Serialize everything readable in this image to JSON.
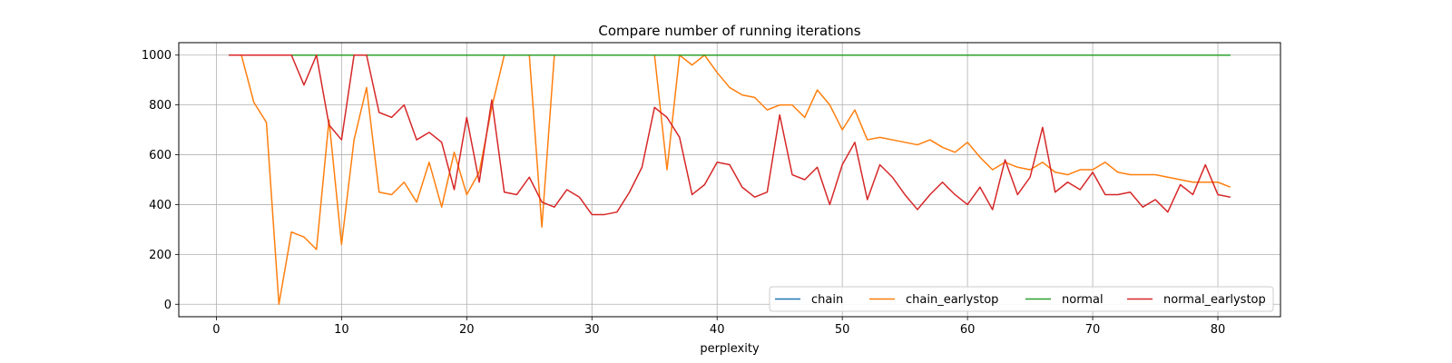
{
  "chart_data": {
    "type": "line",
    "title": "Compare number of running iterations",
    "xlabel": "perplexity",
    "ylabel": "",
    "xlim": [
      -3,
      85
    ],
    "ylim": [
      -50,
      1050
    ],
    "xticks": [
      0,
      10,
      20,
      30,
      40,
      50,
      60,
      70,
      80
    ],
    "yticks": [
      0,
      200,
      400,
      600,
      800,
      1000
    ],
    "grid": true,
    "legend_position": "lower-right",
    "legend_columns": 4,
    "x": [
      1,
      2,
      3,
      4,
      5,
      6,
      7,
      8,
      9,
      10,
      11,
      12,
      13,
      14,
      15,
      16,
      17,
      18,
      19,
      20,
      21,
      22,
      23,
      24,
      25,
      26,
      27,
      28,
      29,
      30,
      31,
      32,
      33,
      34,
      35,
      36,
      37,
      38,
      39,
      40,
      41,
      42,
      43,
      44,
      45,
      46,
      47,
      48,
      49,
      50,
      51,
      52,
      53,
      54,
      55,
      56,
      57,
      58,
      59,
      60,
      61,
      62,
      63,
      64,
      65,
      66,
      67,
      68,
      69,
      70,
      71,
      72,
      73,
      74,
      75,
      76,
      77,
      78,
      79,
      80,
      81
    ],
    "series": [
      {
        "name": "chain",
        "color": "#1f77b4",
        "values": [
          1000,
          1000,
          1000,
          1000,
          1000,
          1000,
          1000,
          1000,
          1000,
          1000,
          1000,
          1000,
          1000,
          1000,
          1000,
          1000,
          1000,
          1000,
          1000,
          1000,
          1000,
          1000,
          1000,
          1000,
          1000,
          1000,
          1000,
          1000,
          1000,
          1000,
          1000,
          1000,
          1000,
          1000,
          1000,
          1000,
          1000,
          1000,
          1000,
          1000,
          1000,
          1000,
          1000,
          1000,
          1000,
          1000,
          1000,
          1000,
          1000,
          1000,
          1000,
          1000,
          1000,
          1000,
          1000,
          1000,
          1000,
          1000,
          1000,
          1000,
          1000,
          1000,
          1000,
          1000,
          1000,
          1000,
          1000,
          1000,
          1000,
          1000,
          1000,
          1000,
          1000,
          1000,
          1000,
          1000,
          1000,
          1000,
          1000,
          1000,
          1000
        ]
      },
      {
        "name": "chain_earlystop",
        "color": "#ff7f0e",
        "values": [
          1000,
          1000,
          810,
          730,
          0,
          290,
          270,
          220,
          740,
          240,
          660,
          870,
          450,
          440,
          490,
          410,
          570,
          390,
          610,
          440,
          530,
          790,
          1000,
          1000,
          1000,
          310,
          1000,
          1000,
          1000,
          1000,
          1000,
          1000,
          1000,
          1000,
          1000,
          540,
          1000,
          960,
          1000,
          930,
          870,
          840,
          830,
          780,
          800,
          800,
          750,
          860,
          800,
          700,
          780,
          660,
          670,
          660,
          650,
          640,
          660,
          630,
          610,
          650,
          590,
          540,
          570,
          550,
          540,
          570,
          530,
          520,
          540,
          540,
          570,
          530,
          520,
          520,
          520,
          510,
          500,
          490,
          490,
          490,
          470
        ]
      },
      {
        "name": "normal",
        "color": "#2ca02c",
        "values": [
          1000,
          1000,
          1000,
          1000,
          1000,
          1000,
          1000,
          1000,
          1000,
          1000,
          1000,
          1000,
          1000,
          1000,
          1000,
          1000,
          1000,
          1000,
          1000,
          1000,
          1000,
          1000,
          1000,
          1000,
          1000,
          1000,
          1000,
          1000,
          1000,
          1000,
          1000,
          1000,
          1000,
          1000,
          1000,
          1000,
          1000,
          1000,
          1000,
          1000,
          1000,
          1000,
          1000,
          1000,
          1000,
          1000,
          1000,
          1000,
          1000,
          1000,
          1000,
          1000,
          1000,
          1000,
          1000,
          1000,
          1000,
          1000,
          1000,
          1000,
          1000,
          1000,
          1000,
          1000,
          1000,
          1000,
          1000,
          1000,
          1000,
          1000,
          1000,
          1000,
          1000,
          1000,
          1000,
          1000,
          1000,
          1000,
          1000,
          1000,
          1000
        ]
      },
      {
        "name": "normal_earlystop",
        "color": "#d62728",
        "values": [
          1000,
          1000,
          1000,
          1000,
          1000,
          1000,
          880,
          1000,
          720,
          660,
          1000,
          1000,
          770,
          750,
          800,
          660,
          690,
          650,
          460,
          750,
          490,
          820,
          450,
          440,
          510,
          410,
          390,
          460,
          430,
          360,
          360,
          370,
          450,
          550,
          790,
          750,
          670,
          440,
          480,
          570,
          560,
          470,
          430,
          450,
          760,
          520,
          500,
          550,
          400,
          560,
          650,
          420,
          560,
          510,
          440,
          380,
          440,
          490,
          440,
          400,
          470,
          380,
          580,
          440,
          510,
          710,
          450,
          490,
          460,
          530,
          440,
          440,
          450,
          390,
          420,
          370,
          480,
          440,
          560,
          440,
          430
        ]
      }
    ]
  }
}
